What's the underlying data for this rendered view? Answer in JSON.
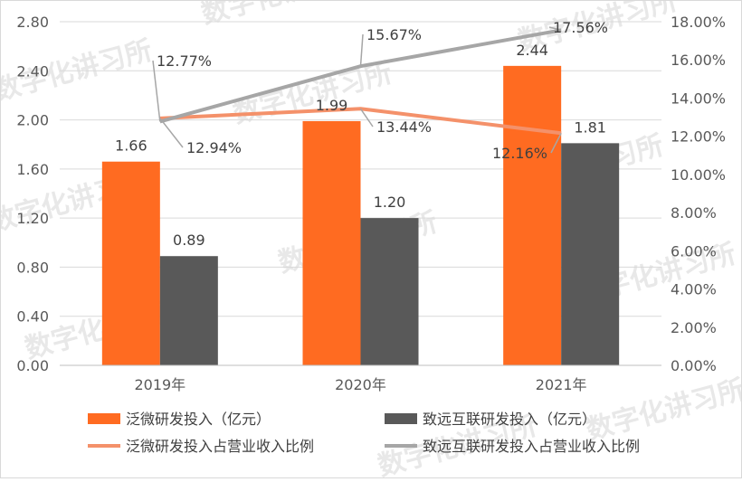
{
  "chart_data": {
    "type": "bar",
    "categories": [
      "2019年",
      "2020年",
      "2021年"
    ],
    "series": [
      {
        "name": "泛微研发投入（亿元）",
        "kind": "bar",
        "axis": "left",
        "color": "#ff6b21",
        "values": [
          1.66,
          1.99,
          2.44
        ],
        "labels": [
          "1.66",
          "1.99",
          "2.44"
        ]
      },
      {
        "name": "致远互联研发投入（亿元）",
        "kind": "bar",
        "axis": "left",
        "color": "#595959",
        "values": [
          0.89,
          1.2,
          1.81
        ],
        "labels": [
          "0.89",
          "1.20",
          "1.81"
        ]
      },
      {
        "name": "泛微研发投入占营业收入比例",
        "kind": "line",
        "axis": "right",
        "color": "#f4916a",
        "values": [
          12.94,
          13.44,
          12.16
        ],
        "labels": [
          "12.94%",
          "13.44%",
          "12.16%"
        ]
      },
      {
        "name": "致远互联研发投入占营业收入比例",
        "kind": "line",
        "axis": "right",
        "color": "#a6a6a6",
        "values": [
          12.77,
          15.67,
          17.56
        ],
        "labels": [
          "12.77%",
          "15.67%",
          "17.56%"
        ]
      }
    ],
    "y_left": {
      "min": 0,
      "max": 2.8,
      "ticks": [
        "0.00",
        "0.40",
        "0.80",
        "1.20",
        "1.60",
        "2.00",
        "2.40",
        "2.80"
      ]
    },
    "y_right": {
      "min": 0,
      "max": 18,
      "ticks": [
        "0.00%",
        "2.00%",
        "4.00%",
        "6.00%",
        "8.00%",
        "10.00%",
        "12.00%",
        "14.00%",
        "16.00%",
        "18.00%"
      ]
    },
    "grid": true,
    "legend_position": "bottom"
  },
  "watermark": "数字化讲习所"
}
